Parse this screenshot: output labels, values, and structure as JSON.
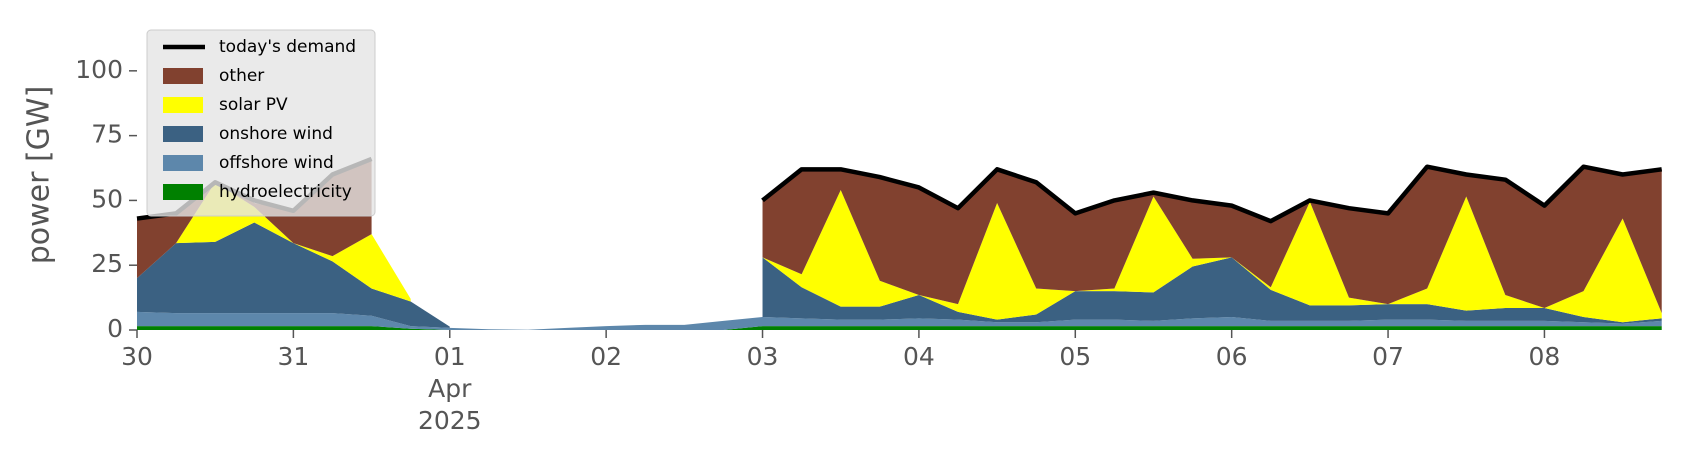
{
  "chart_data": {
    "type": "area",
    "stacked": true,
    "ylabel": "power [GW]",
    "ylim": [
      0,
      120
    ],
    "yticks": [
      0,
      25,
      50,
      75,
      100
    ],
    "xlim": [
      0,
      9.95
    ],
    "xticks": [
      {
        "value": 0,
        "label": "30"
      },
      {
        "value": 1,
        "label": "31"
      },
      {
        "value": 2,
        "label": "01"
      },
      {
        "value": 3,
        "label": "02"
      },
      {
        "value": 4,
        "label": "03"
      },
      {
        "value": 5,
        "label": "04"
      },
      {
        "value": 6,
        "label": "05"
      },
      {
        "value": 7,
        "label": "06"
      },
      {
        "value": 8,
        "label": "07"
      },
      {
        "value": 9,
        "label": "08"
      }
    ],
    "xtick_month": "Apr",
    "xtick_year": "2025",
    "legend_position": "upper left",
    "x": [
      0,
      0.25,
      0.5,
      0.75,
      1,
      1.25,
      1.5,
      1.75,
      2,
      2.25,
      2.5,
      2.75,
      3,
      3.25,
      3.5,
      3.75,
      4,
      4.25,
      4.5,
      4.75,
      5,
      5.25,
      5.5,
      5.75,
      6,
      6.25,
      6.5,
      6.75,
      7,
      7.25,
      7.5,
      7.75,
      8,
      8.25,
      8.5,
      8.75,
      9,
      9.25,
      9.5,
      9.75
    ],
    "series": [
      {
        "name": "hydroelectricity",
        "color": "#008000",
        "values": [
          1.5,
          1.5,
          1.5,
          1.5,
          1.5,
          1.5,
          1.5,
          0.5,
          0,
          0,
          0,
          0,
          0,
          0,
          0,
          0,
          1.5,
          1.5,
          1.5,
          1.5,
          1.5,
          1.5,
          1.5,
          1.5,
          1.5,
          1.5,
          1.5,
          1.5,
          1.5,
          1.5,
          1.5,
          1.5,
          1.5,
          1.5,
          1.5,
          1.5,
          1.5,
          1.5,
          1.5,
          1.5
        ]
      },
      {
        "name": "offshore wind",
        "color": "#5d87ab",
        "values": [
          5.5,
          5,
          5,
          5,
          5,
          5,
          4,
          1,
          0.8,
          0.3,
          0.1,
          0.8,
          1.5,
          2,
          2,
          3.5,
          3.5,
          3,
          2.5,
          2.5,
          3,
          2.5,
          1.5,
          1.5,
          2.5,
          2.5,
          2,
          3,
          3.5,
          2,
          2,
          2,
          2.5,
          2.5,
          2,
          2,
          2,
          1.5,
          1,
          2
        ]
      },
      {
        "name": "onshore wind",
        "color": "#3b6182",
        "values": [
          13,
          27,
          27.5,
          35,
          27,
          20,
          10.5,
          9.5,
          0.5,
          null,
          null,
          null,
          null,
          null,
          null,
          null,
          23,
          12,
          5,
          5,
          9,
          3,
          1,
          3,
          11,
          11,
          11,
          20,
          23,
          12,
          6,
          6,
          6,
          6,
          4,
          5,
          5,
          2,
          0.5,
          1
        ]
      },
      {
        "name": "solar PV",
        "color": "#ffff00",
        "values": [
          0,
          0,
          23,
          6,
          0,
          2,
          21,
          1,
          null,
          null,
          null,
          null,
          null,
          null,
          null,
          null,
          0,
          5,
          45,
          10,
          0,
          3,
          45,
          10,
          0,
          1,
          37,
          3,
          0,
          1,
          40,
          3,
          0,
          6,
          44,
          5,
          0,
          10,
          40,
          2
        ]
      },
      {
        "name": "other",
        "color": "#81412f",
        "values": [
          23,
          11.5,
          0.5,
          1.5,
          12.5,
          31.5,
          29,
          null,
          null,
          null,
          null,
          null,
          null,
          null,
          null,
          null,
          22,
          40.5,
          8,
          40,
          41.5,
          37,
          13,
          41,
          30,
          34,
          1.5,
          22.5,
          20,
          25.5,
          0.5,
          34.5,
          35,
          47,
          8.5,
          44.5,
          39.5,
          48,
          17,
          55.5
        ]
      }
    ],
    "line": {
      "name": "today's demand",
      "color": "#000000",
      "values": [
        43,
        45,
        57,
        50,
        46,
        60,
        66,
        null,
        null,
        null,
        null,
        null,
        null,
        null,
        null,
        null,
        50,
        62,
        62,
        59,
        55,
        47,
        62,
        57,
        45,
        50,
        53,
        50,
        48,
        42,
        50,
        47,
        45,
        63,
        60,
        58,
        48,
        63,
        60,
        62
      ]
    }
  }
}
